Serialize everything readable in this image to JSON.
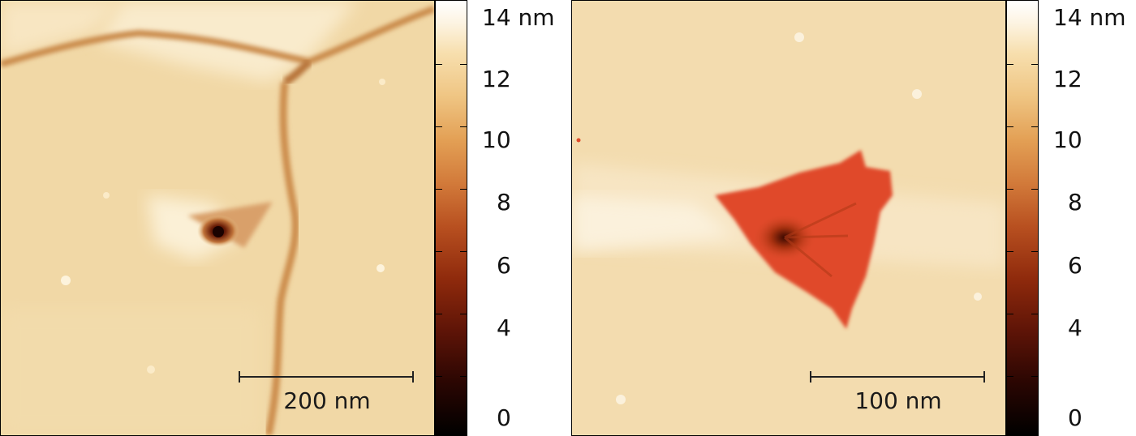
{
  "left_panel": {
    "scalebar_label": "200 nm",
    "colorbar": {
      "unit_label": "14 nm",
      "tick_labels": [
        "12",
        "10",
        "8",
        "6",
        "4",
        "0"
      ]
    }
  },
  "right_panel": {
    "scalebar_label": "100 nm",
    "colorbar": {
      "unit_label": "14 nm",
      "tick_labels": [
        "12",
        "10",
        "8",
        "6",
        "4",
        "0"
      ]
    }
  },
  "colors": {
    "surface": "#f3dcac",
    "surface_light": "#fbeed2",
    "grain_boundary": "#c88a48",
    "pit_core": "#1a0200",
    "pit_fill": "#e04a2a"
  }
}
